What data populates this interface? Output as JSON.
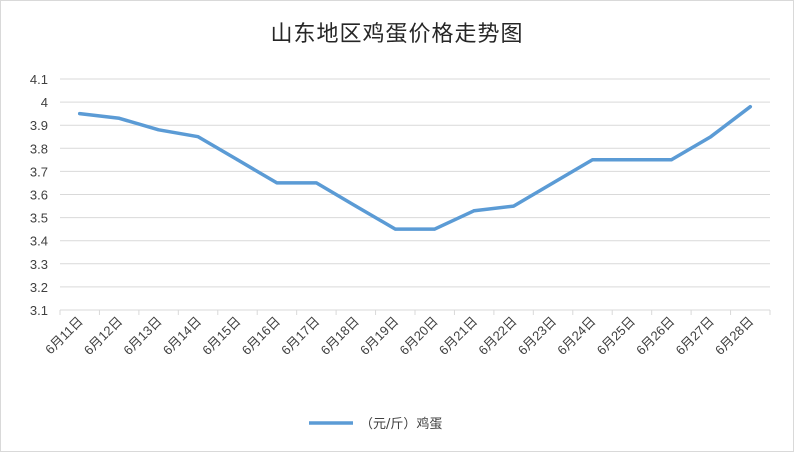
{
  "chart_data": {
    "type": "line",
    "title": "山东地区鸡蛋价格走势图",
    "categories": [
      "6月11日",
      "6月12日",
      "6月13日",
      "6月14日",
      "6月15日",
      "6月16日",
      "6月17日",
      "6月18日",
      "6月19日",
      "6月20日",
      "6月21日",
      "6月22日",
      "6月23日",
      "6月24日",
      "6月25日",
      "6月26日",
      "6月27日",
      "6月28日"
    ],
    "series": [
      {
        "name": "（元/斤）鸡蛋",
        "values": [
          3.95,
          3.93,
          3.88,
          3.85,
          3.75,
          3.65,
          3.65,
          3.55,
          3.45,
          3.45,
          3.53,
          3.55,
          3.65,
          3.75,
          3.75,
          3.75,
          3.85,
          3.98
        ],
        "color": "#5b9bd5"
      }
    ],
    "yticks": [
      "3.1",
      "3.2",
      "3.3",
      "3.4",
      "3.5",
      "3.6",
      "3.7",
      "3.8",
      "3.9",
      "4",
      "4.1"
    ],
    "ylim": [
      3.1,
      4.1
    ],
    "grid": true,
    "legend": "bottom"
  }
}
